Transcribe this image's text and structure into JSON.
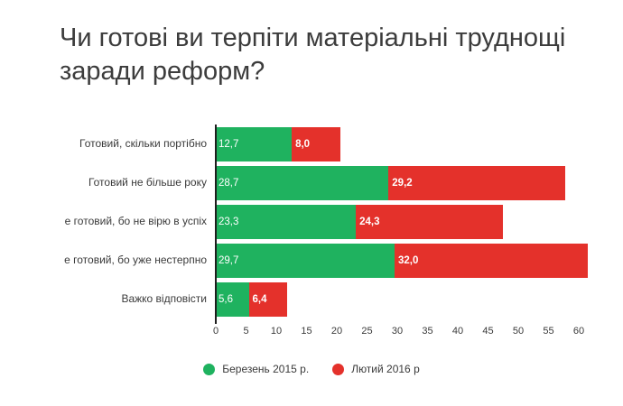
{
  "title": "Чи готові ви терпіти матеріальні труднощі заради реформ?",
  "colors": {
    "green": "#1fb25f",
    "red": "#e4312b",
    "title_text": "#3c3c3c",
    "axis_text": "#3a3a3a",
    "axis_line": "#1f1f1f"
  },
  "chart_data": {
    "type": "bar",
    "orientation": "horizontal",
    "stacked": true,
    "title": "Чи готові ви терпіти матеріальні труднощі заради реформ?",
    "categories": [
      "Готовий, скільки портібно",
      "Готовий не більше року",
      "е готовий, бо не вірю в успіх",
      "е готовий, бо уже нестерпно",
      "Важко відповісти"
    ],
    "series": [
      {
        "name": "Березень 2015 р.",
        "color": "#1fb25f",
        "values": [
          12.7,
          28.7,
          23.3,
          29.7,
          5.6
        ]
      },
      {
        "name": "Лютий 2016 р",
        "color": "#e4312b",
        "values": [
          8.0,
          29.2,
          24.3,
          32.0,
          6.4
        ]
      }
    ],
    "value_labels": [
      [
        "12,7",
        "8,0"
      ],
      [
        "28,7",
        "29,2"
      ],
      [
        "23,3",
        "24,3"
      ],
      [
        "29,7",
        "32,0"
      ],
      [
        "5,6",
        "6,4"
      ]
    ],
    "x_ticks": [
      0,
      5,
      10,
      15,
      20,
      25,
      30,
      35,
      40,
      45,
      50,
      55,
      60
    ],
    "xlim": [
      0,
      63
    ],
    "xlabel": "",
    "ylabel": "",
    "grid": false,
    "legend_position": "bottom"
  }
}
